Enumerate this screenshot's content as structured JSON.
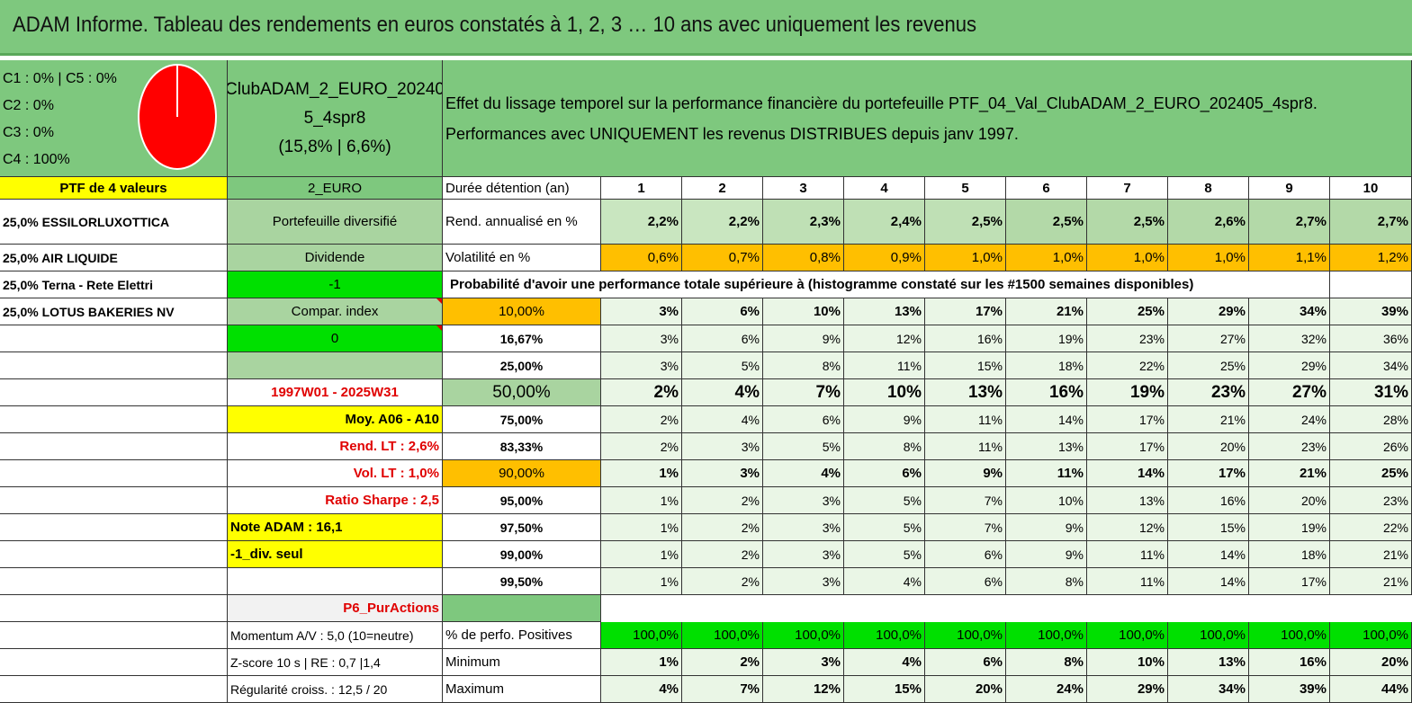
{
  "title": "ADAM Informe. Tableau des rendements en euros constatés à 1, 2, 3 … 10 ans avec uniquement les revenus",
  "allocation": {
    "lines": [
      "C1 : 0% | C5 : 0%",
      "C2 : 0%",
      "C3 : 0%",
      "C4 : 100%"
    ],
    "pie": {
      "C4": 100
    },
    "pie_color": "#ff0000"
  },
  "portfolio": {
    "name_line1": "ClubADAM_2_EURO_20240",
    "name_line2": "5_4spr8",
    "name_line3": "(15,8% | 6,6%)",
    "description_line1": "Effet du lissage temporel sur la performance financière du portefeuille PTF_04_Val_ClubADAM_2_EURO_202405_4spr8.",
    "description_line2": "Performances avec UNIQUEMENT les revenus DISTRIBUES depuis janv 1997."
  },
  "left_col": {
    "header": "PTF de 4 valeurs",
    "holdings": [
      "25,0% ESSILORLUXOTTICA",
      "25,0% AIR LIQUIDE",
      "25,0% Terna - Rete Elettri",
      "25,0% LOTUS BAKERIES NV"
    ]
  },
  "mid_col": {
    "currency": "2_EURO",
    "type": "Portefeuille diversifié",
    "strategy": "Dividende",
    "value_minus1": "-1",
    "compar": "Compar. index",
    "zero": "0",
    "empty": "",
    "period": "1997W01 - 2025W31",
    "moy": "Moy. A06 - A10",
    "rend_lt": "Rend. LT : 2,6%",
    "vol_lt": "Vol. LT : 1,0%",
    "sharpe": "Ratio Sharpe : 2,5",
    "note": "Note ADAM : 16,1",
    "div": "-1_div. seul",
    "p6": "P6_PurActions",
    "momentum": "Momentum A/V : 5,0 (10=neutre)",
    "zscore": "Z-score 10 s | RE : 0,7 |1,4",
    "regularite": "Régularité croiss. : 12,5 / 20"
  },
  "table": {
    "duration_label": "Durée détention (an)",
    "years": [
      "1",
      "2",
      "3",
      "4",
      "5",
      "6",
      "7",
      "8",
      "9",
      "10"
    ],
    "rend_label": "Rend. annualisé en %",
    "rend": [
      "2,2%",
      "2,2%",
      "2,3%",
      "2,4%",
      "2,5%",
      "2,5%",
      "2,5%",
      "2,6%",
      "2,7%",
      "2,7%"
    ],
    "vol_label": "Volatilité en %",
    "vol": [
      "0,6%",
      "0,7%",
      "0,8%",
      "0,9%",
      "1,0%",
      "1,0%",
      "1,0%",
      "1,0%",
      "1,1%",
      "1,2%"
    ],
    "prob_label": "Probabilité d'avoir une performance totale supérieure à (histogramme constaté sur les #1500 semaines disponibles)",
    "prob_rows": [
      {
        "pct": "10,00%",
        "values": [
          "3%",
          "6%",
          "10%",
          "13%",
          "17%",
          "21%",
          "25%",
          "29%",
          "34%",
          "39%"
        ]
      },
      {
        "pct": "16,67%",
        "values": [
          "3%",
          "6%",
          "9%",
          "12%",
          "16%",
          "19%",
          "23%",
          "27%",
          "32%",
          "36%"
        ]
      },
      {
        "pct": "25,00%",
        "values": [
          "3%",
          "5%",
          "8%",
          "11%",
          "15%",
          "18%",
          "22%",
          "25%",
          "29%",
          "34%"
        ]
      },
      {
        "pct": "50,00%",
        "values": [
          "2%",
          "4%",
          "7%",
          "10%",
          "13%",
          "16%",
          "19%",
          "23%",
          "27%",
          "31%"
        ]
      },
      {
        "pct": "75,00%",
        "values": [
          "2%",
          "4%",
          "6%",
          "9%",
          "11%",
          "14%",
          "17%",
          "21%",
          "24%",
          "28%"
        ]
      },
      {
        "pct": "83,33%",
        "values": [
          "2%",
          "3%",
          "5%",
          "8%",
          "11%",
          "13%",
          "17%",
          "20%",
          "23%",
          "26%"
        ]
      },
      {
        "pct": "90,00%",
        "values": [
          "1%",
          "3%",
          "4%",
          "6%",
          "9%",
          "11%",
          "14%",
          "17%",
          "21%",
          "25%"
        ]
      },
      {
        "pct": "95,00%",
        "values": [
          "1%",
          "2%",
          "3%",
          "5%",
          "7%",
          "10%",
          "13%",
          "16%",
          "20%",
          "23%"
        ]
      },
      {
        "pct": "97,50%",
        "values": [
          "1%",
          "2%",
          "3%",
          "5%",
          "7%",
          "9%",
          "12%",
          "15%",
          "19%",
          "22%"
        ]
      },
      {
        "pct": "99,00%",
        "values": [
          "1%",
          "2%",
          "3%",
          "5%",
          "6%",
          "9%",
          "11%",
          "14%",
          "18%",
          "21%"
        ]
      },
      {
        "pct": "99,50%",
        "values": [
          "1%",
          "2%",
          "3%",
          "4%",
          "6%",
          "8%",
          "11%",
          "14%",
          "17%",
          "21%"
        ]
      }
    ],
    "pos_label": "% de perfo. Positives",
    "pos": [
      "100,0%",
      "100,0%",
      "100,0%",
      "100,0%",
      "100,0%",
      "100,0%",
      "100,0%",
      "100,0%",
      "100,0%",
      "100,0%"
    ],
    "min_label": "Minimum",
    "min": [
      "1%",
      "2%",
      "3%",
      "4%",
      "6%",
      "8%",
      "10%",
      "13%",
      "16%",
      "20%"
    ],
    "max_label": "Maximum",
    "max": [
      "4%",
      "7%",
      "12%",
      "15%",
      "20%",
      "24%",
      "29%",
      "34%",
      "39%",
      "44%"
    ]
  }
}
